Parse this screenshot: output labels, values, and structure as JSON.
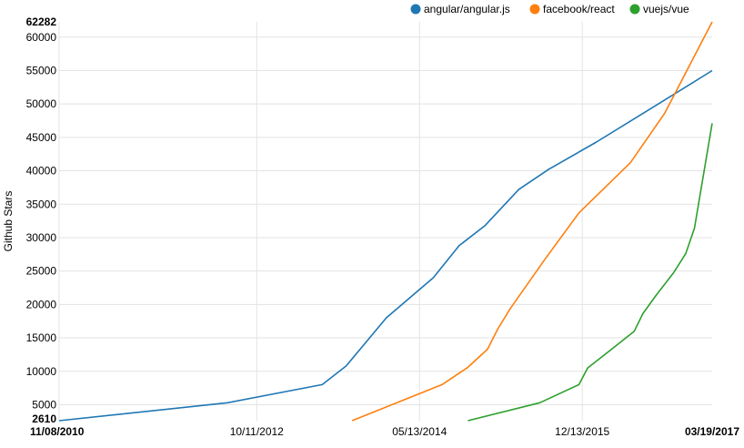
{
  "chart_data": {
    "type": "line",
    "ylabel": "Github Stars",
    "xlabel": "",
    "title": "",
    "ylim": [
      2610,
      62282
    ],
    "y_ticks": [
      5000,
      10000,
      15000,
      20000,
      25000,
      30000,
      35000,
      40000,
      45000,
      50000,
      55000,
      60000
    ],
    "y_min_label": "2610",
    "y_max_label": "62282",
    "x_range": [
      "2010-11-08",
      "2017-03-19"
    ],
    "x_ticks": [
      {
        "date": "2010-11-08",
        "label": "11/08/2010",
        "bold": true
      },
      {
        "date": "2012-10-11",
        "label": "10/11/2012",
        "bold": false
      },
      {
        "date": "2014-05-13",
        "label": "05/13/2014",
        "bold": false
      },
      {
        "date": "2015-12-13",
        "label": "12/13/2015",
        "bold": false
      },
      {
        "date": "2017-03-19",
        "label": "03/19/2017",
        "bold": true
      }
    ],
    "grid": true,
    "legend_position": "top-right",
    "series": [
      {
        "name": "angular/angular.js",
        "color": "#1f77b4",
        "points": [
          [
            "2010-11-08",
            2610
          ],
          [
            "2012-06-30",
            5300
          ],
          [
            "2013-06-01",
            8000
          ],
          [
            "2013-08-25",
            10800
          ],
          [
            "2014-01-15",
            18000
          ],
          [
            "2014-07-01",
            24000
          ],
          [
            "2014-10-01",
            28800
          ],
          [
            "2015-01-01",
            31800
          ],
          [
            "2015-05-01",
            37200
          ],
          [
            "2015-08-15",
            40200
          ],
          [
            "2016-02-01",
            44300
          ],
          [
            "2016-09-01",
            49800
          ],
          [
            "2017-03-19",
            55000
          ]
        ]
      },
      {
        "name": "facebook/react",
        "color": "#ff7f0e",
        "points": [
          [
            "2013-09-15",
            2610
          ],
          [
            "2014-08-01",
            8000
          ],
          [
            "2014-11-01",
            10600
          ],
          [
            "2015-01-10",
            13300
          ],
          [
            "2015-02-15",
            16300
          ],
          [
            "2015-04-01",
            19400
          ],
          [
            "2015-08-01",
            26700
          ],
          [
            "2015-12-01",
            33700
          ],
          [
            "2016-06-01",
            41200
          ],
          [
            "2016-10-01",
            48600
          ],
          [
            "2017-03-19",
            62282
          ]
        ]
      },
      {
        "name": "vuejs/vue",
        "color": "#2ca02c",
        "points": [
          [
            "2014-11-01",
            2610
          ],
          [
            "2015-07-15",
            5300
          ],
          [
            "2015-12-01",
            8000
          ],
          [
            "2016-01-01",
            10500
          ],
          [
            "2016-04-01",
            13500
          ],
          [
            "2016-06-15",
            16000
          ],
          [
            "2016-07-15",
            18600
          ],
          [
            "2016-09-01",
            21400
          ],
          [
            "2016-11-01",
            24700
          ],
          [
            "2016-12-15",
            27600
          ],
          [
            "2017-01-15",
            31400
          ],
          [
            "2017-03-19",
            47100
          ]
        ]
      }
    ]
  }
}
